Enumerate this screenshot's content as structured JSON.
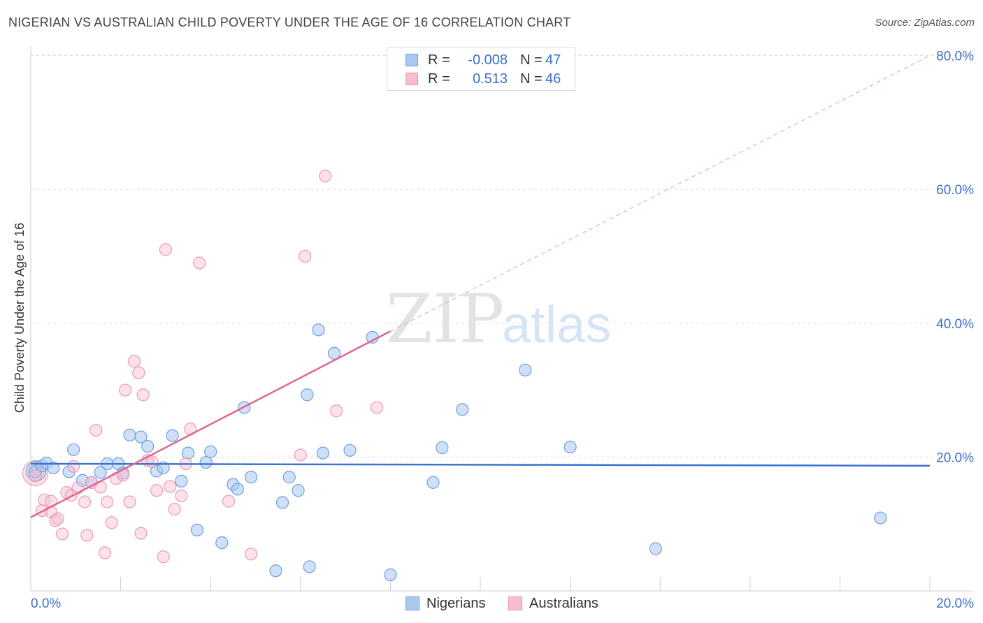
{
  "title": "NIGERIAN VS AUSTRALIAN CHILD POVERTY UNDER THE AGE OF 16 CORRELATION CHART",
  "source": "Source: ZipAtlas.com",
  "watermark": {
    "zip": "ZIP",
    "atlas": "atlas"
  },
  "legend": {
    "rows": [
      {
        "r_label": "R =",
        "r_value": "-0.008",
        "n_label": "N =",
        "n_value": "47",
        "color": "#a9c8f0",
        "stroke": "#6e9fe0"
      },
      {
        "r_label": "R =",
        "r_value": "0.513",
        "n_label": "N =",
        "n_value": "46",
        "color": "#f6bdd0",
        "stroke": "#e98fae"
      }
    ]
  },
  "bottom_legend": [
    {
      "label": "Nigerians",
      "color": "#a9c8f0",
      "stroke": "#6e9fe0"
    },
    {
      "label": "Australians",
      "color": "#f6bdd0",
      "stroke": "#e98fae"
    }
  ],
  "chart_data": {
    "type": "scatter",
    "title": "NIGERIAN VS AUSTRALIAN CHILD POVERTY UNDER THE AGE OF 16 CORRELATION CHART",
    "xlabel": "",
    "ylabel": "Child Poverty Under the Age of 16",
    "xlim": [
      0,
      20
    ],
    "ylim": [
      0,
      80
    ],
    "x_tick_labels": [
      "0.0%",
      "20.0%"
    ],
    "y_tick_labels": [
      "20.0%",
      "40.0%",
      "60.0%",
      "80.0%"
    ],
    "y_ticks": [
      20,
      40,
      60,
      80
    ],
    "grid": true,
    "legend_position": "top-center",
    "colors": {
      "nigerians": "#4a80d8",
      "australians": "#e0668f"
    },
    "series": [
      {
        "name": "Nigerians",
        "trend": {
          "x": [
            0,
            20
          ],
          "y": [
            19.0,
            18.7
          ],
          "dashed_extension": false
        },
        "points": [
          [
            0.1,
            17.8
          ],
          [
            0.25,
            18.7
          ],
          [
            0.35,
            19.1
          ],
          [
            0.5,
            18.4
          ],
          [
            0.85,
            17.8
          ],
          [
            0.95,
            21.1
          ],
          [
            1.15,
            16.5
          ],
          [
            1.35,
            16.2
          ],
          [
            1.55,
            17.7
          ],
          [
            1.7,
            19.0
          ],
          [
            1.95,
            19.0
          ],
          [
            2.05,
            17.6
          ],
          [
            2.2,
            23.3
          ],
          [
            2.45,
            23.0
          ],
          [
            2.6,
            21.6
          ],
          [
            2.8,
            17.9
          ],
          [
            2.95,
            18.4
          ],
          [
            3.15,
            23.2
          ],
          [
            3.35,
            16.4
          ],
          [
            3.5,
            20.6
          ],
          [
            3.7,
            9.1
          ],
          [
            3.9,
            19.2
          ],
          [
            4.0,
            20.8
          ],
          [
            4.25,
            7.2
          ],
          [
            4.5,
            15.9
          ],
          [
            4.6,
            15.2
          ],
          [
            4.75,
            27.4
          ],
          [
            4.9,
            17.0
          ],
          [
            5.45,
            3.0
          ],
          [
            5.6,
            13.2
          ],
          [
            5.75,
            17.0
          ],
          [
            5.95,
            15.0
          ],
          [
            6.15,
            29.3
          ],
          [
            6.2,
            3.6
          ],
          [
            6.4,
            39.0
          ],
          [
            6.5,
            20.6
          ],
          [
            6.75,
            35.5
          ],
          [
            7.1,
            21.0
          ],
          [
            7.6,
            37.9
          ],
          [
            8.0,
            2.4
          ],
          [
            8.95,
            16.2
          ],
          [
            9.15,
            21.4
          ],
          [
            9.6,
            27.1
          ],
          [
            11.0,
            33.0
          ],
          [
            12.0,
            21.5
          ],
          [
            13.9,
            6.3
          ],
          [
            18.9,
            10.9
          ]
        ]
      },
      {
        "name": "Australians",
        "trend": {
          "x": [
            0,
            8.0
          ],
          "y": [
            11.0,
            38.8
          ],
          "dashed_extension": true,
          "extension_to": [
            20,
            80
          ]
        },
        "points": [
          [
            0.1,
            17.2
          ],
          [
            0.25,
            12.0
          ],
          [
            0.3,
            13.6
          ],
          [
            0.45,
            11.8
          ],
          [
            0.45,
            13.4
          ],
          [
            0.55,
            10.5
          ],
          [
            0.6,
            10.8
          ],
          [
            0.7,
            8.5
          ],
          [
            0.8,
            14.7
          ],
          [
            0.9,
            14.3
          ],
          [
            0.95,
            18.6
          ],
          [
            1.05,
            15.4
          ],
          [
            1.2,
            13.3
          ],
          [
            1.25,
            8.3
          ],
          [
            1.35,
            16.2
          ],
          [
            1.45,
            24.0
          ],
          [
            1.55,
            15.5
          ],
          [
            1.65,
            5.7
          ],
          [
            1.7,
            13.3
          ],
          [
            1.8,
            10.2
          ],
          [
            1.9,
            16.8
          ],
          [
            2.05,
            17.3
          ],
          [
            2.1,
            30.0
          ],
          [
            2.2,
            13.3
          ],
          [
            2.3,
            34.3
          ],
          [
            2.4,
            32.6
          ],
          [
            2.45,
            8.6
          ],
          [
            2.5,
            29.3
          ],
          [
            2.6,
            19.5
          ],
          [
            2.7,
            19.3
          ],
          [
            2.8,
            15.0
          ],
          [
            2.95,
            5.1
          ],
          [
            3.0,
            51.0
          ],
          [
            3.1,
            15.6
          ],
          [
            3.2,
            12.2
          ],
          [
            3.35,
            14.2
          ],
          [
            3.45,
            19.0
          ],
          [
            3.55,
            24.2
          ],
          [
            3.75,
            49.0
          ],
          [
            4.4,
            13.4
          ],
          [
            4.9,
            5.5
          ],
          [
            6.0,
            20.3
          ],
          [
            6.1,
            50.0
          ],
          [
            6.55,
            62.0
          ],
          [
            6.8,
            26.9
          ],
          [
            7.7,
            27.4
          ]
        ]
      }
    ]
  }
}
